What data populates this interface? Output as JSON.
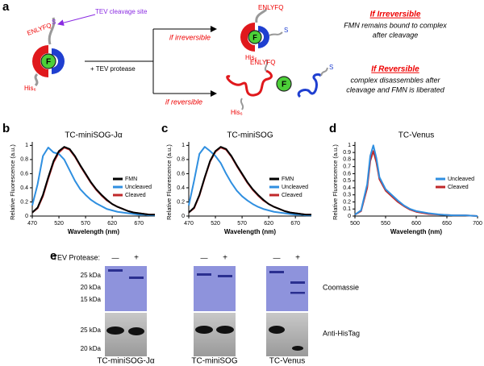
{
  "figure": {
    "panel_labels": [
      "a",
      "b",
      "c",
      "d",
      "e"
    ],
    "schematic": {
      "cleavage_site_label": "TEV cleavage site",
      "sequence": "ENLYFQ",
      "sequence_end": "S",
      "flavin": "F",
      "his_tag": "His₆",
      "protease": "+ TEV protease",
      "branch_irreversible": "if irreversible",
      "branch_reversible": "if reversible",
      "irreversible_heading": "If Irreversible",
      "irreversible_text": [
        "FMN remains bound to complex",
        "after cleavage"
      ],
      "reversible_heading": "If Reversible",
      "reversible_text": [
        "complex disassembles after",
        "cleavage and FMN is liberated"
      ]
    },
    "gels": {
      "protease_label": "TEV Protease:",
      "lanes": [
        "—",
        "+"
      ],
      "markers_top": [
        "25 kDa",
        "20 kDa",
        "15 kDa"
      ],
      "markers_bottom": [
        "25 kDa",
        "20 kDa"
      ],
      "stains": [
        "Coomassie",
        "Anti-HisTag"
      ],
      "samples": [
        "TC-miniSOG-Jα",
        "TC-miniSOG",
        "TC-Venus"
      ]
    }
  },
  "chart_data": [
    {
      "type": "line",
      "title": "TC-miniSOG-Jα",
      "xlabel": "Wavelength (nm)",
      "ylabel": "Relative Fluorescence (a.u.)",
      "x": [
        470,
        480,
        490,
        500,
        510,
        520,
        530,
        540,
        550,
        560,
        570,
        580,
        590,
        600,
        610,
        620,
        630,
        640,
        650,
        660,
        670,
        680,
        690,
        700
      ],
      "series": [
        {
          "name": "FMN",
          "color": "#000000",
          "values": [
            0.05,
            0.12,
            0.3,
            0.55,
            0.78,
            0.92,
            0.98,
            0.95,
            0.85,
            0.72,
            0.6,
            0.48,
            0.38,
            0.3,
            0.23,
            0.17,
            0.13,
            0.1,
            0.07,
            0.05,
            0.04,
            0.03,
            0.02,
            0.02
          ]
        },
        {
          "name": "Uncleaved",
          "color": "#2f8fe0",
          "values": [
            0.15,
            0.45,
            0.85,
            0.97,
            0.9,
            0.88,
            0.8,
            0.65,
            0.5,
            0.38,
            0.3,
            0.23,
            0.18,
            0.14,
            0.1,
            0.08,
            0.06,
            0.05,
            0.04,
            0.03,
            0.02,
            0.02,
            0.01,
            0.01
          ]
        },
        {
          "name": "Cleaved",
          "color": "#c0282a",
          "values": [
            0.05,
            0.11,
            0.28,
            0.53,
            0.76,
            0.9,
            0.97,
            0.94,
            0.84,
            0.71,
            0.59,
            0.47,
            0.37,
            0.29,
            0.22,
            0.17,
            0.13,
            0.1,
            0.07,
            0.05,
            0.04,
            0.03,
            0.02,
            0.02
          ]
        }
      ],
      "xlim": [
        470,
        700
      ],
      "ylim": [
        0,
        1.05
      ],
      "xticks": [
        470,
        520,
        570,
        620,
        670
      ],
      "yticks": [
        0,
        0.2,
        0.4,
        0.6,
        0.8,
        1
      ],
      "legend": "center right"
    },
    {
      "type": "line",
      "title": "TC-miniSOG",
      "xlabel": "Wavelength (nm)",
      "ylabel": "Relative Fluorescence (a.u.)",
      "x": [
        470,
        480,
        490,
        500,
        510,
        520,
        530,
        540,
        550,
        560,
        570,
        580,
        590,
        600,
        610,
        620,
        630,
        640,
        650,
        660,
        670,
        680,
        690,
        700
      ],
      "series": [
        {
          "name": "FMN",
          "color": "#000000",
          "values": [
            0.05,
            0.12,
            0.3,
            0.55,
            0.78,
            0.92,
            0.98,
            0.95,
            0.85,
            0.72,
            0.6,
            0.48,
            0.38,
            0.3,
            0.23,
            0.17,
            0.13,
            0.1,
            0.07,
            0.05,
            0.04,
            0.03,
            0.02,
            0.02
          ]
        },
        {
          "name": "Uncleaved",
          "color": "#2f8fe0",
          "values": [
            0.15,
            0.5,
            0.88,
            0.98,
            0.92,
            0.85,
            0.75,
            0.6,
            0.47,
            0.36,
            0.28,
            0.22,
            0.17,
            0.13,
            0.1,
            0.08,
            0.06,
            0.05,
            0.04,
            0.03,
            0.02,
            0.02,
            0.01,
            0.01
          ]
        },
        {
          "name": "Cleaved",
          "color": "#c0282a",
          "values": [
            0.05,
            0.11,
            0.29,
            0.54,
            0.77,
            0.91,
            0.97,
            0.94,
            0.84,
            0.71,
            0.59,
            0.47,
            0.37,
            0.29,
            0.22,
            0.17,
            0.13,
            0.1,
            0.07,
            0.05,
            0.04,
            0.03,
            0.02,
            0.02
          ]
        }
      ],
      "xlim": [
        470,
        700
      ],
      "ylim": [
        0,
        1.05
      ],
      "xticks": [
        470,
        520,
        570,
        620,
        670
      ],
      "yticks": [
        0,
        0.2,
        0.4,
        0.6,
        0.8,
        1
      ],
      "legend": "center right"
    },
    {
      "type": "line",
      "title": "TC-Venus",
      "xlabel": "Wavelength (nm)",
      "ylabel": "Relative Fluorescence (a.u.)",
      "x": [
        500,
        510,
        520,
        525,
        530,
        535,
        540,
        550,
        560,
        570,
        580,
        590,
        600,
        620,
        640,
        660,
        680,
        700
      ],
      "series": [
        {
          "name": "Uncleaved",
          "color": "#2f8fe0",
          "values": [
            0.02,
            0.08,
            0.45,
            0.85,
            1.0,
            0.82,
            0.55,
            0.38,
            0.3,
            0.22,
            0.15,
            0.1,
            0.07,
            0.04,
            0.02,
            0.01,
            0.01,
            0
          ]
        },
        {
          "name": "Cleaved",
          "color": "#c0282a",
          "values": [
            0.02,
            0.07,
            0.4,
            0.78,
            0.92,
            0.76,
            0.52,
            0.36,
            0.28,
            0.2,
            0.14,
            0.09,
            0.06,
            0.03,
            0.02,
            0.01,
            0.01,
            0
          ]
        }
      ],
      "xlim": [
        500,
        700
      ],
      "ylim": [
        0,
        1.05
      ],
      "xticks": [
        500,
        550,
        600,
        650,
        700
      ],
      "yticks": [
        0,
        0.1,
        0.2,
        0.3,
        0.4,
        0.5,
        0.6,
        0.7,
        0.8,
        0.9,
        1
      ],
      "legend": "center right"
    }
  ]
}
